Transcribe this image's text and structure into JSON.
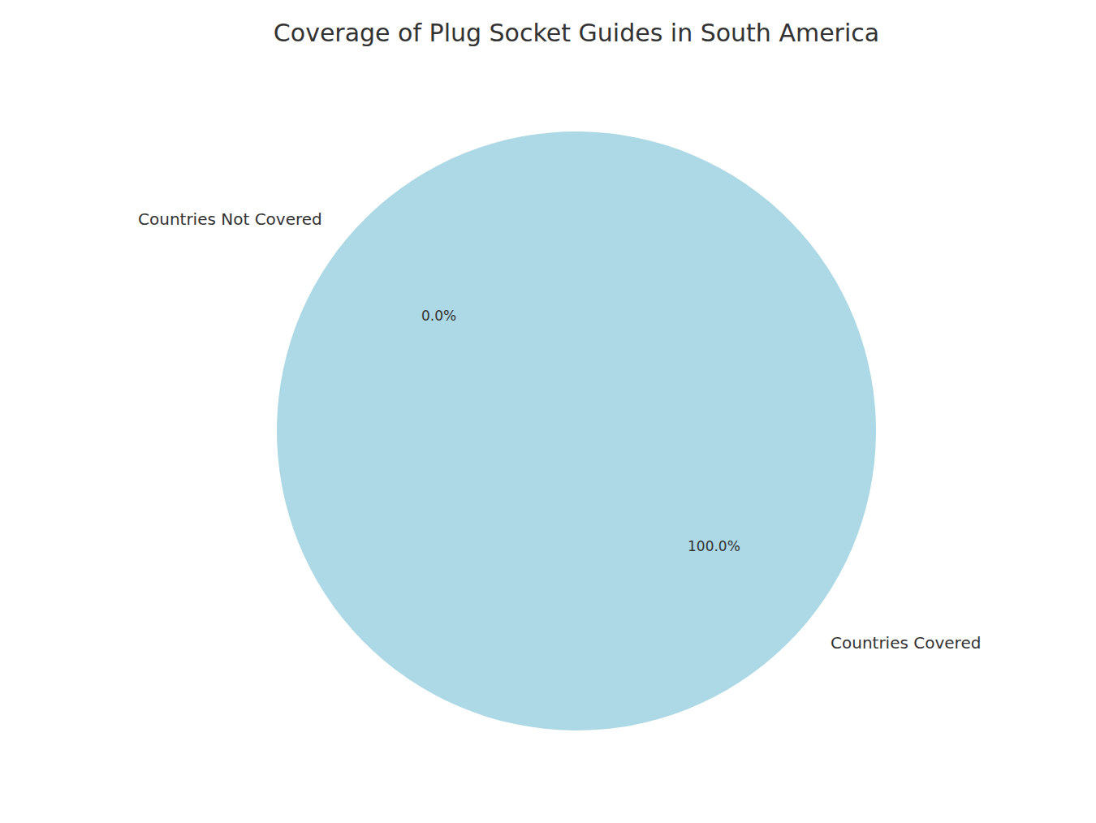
{
  "chart_data": {
    "type": "pie",
    "title": "Coverage of Plug Socket Guides in South America",
    "categories": [
      "Countries Covered",
      "Countries Not Covered"
    ],
    "values": [
      100,
      0
    ],
    "value_labels": [
      "100.0%",
      "0.0%"
    ],
    "data_labels": true,
    "color": "#add8e6"
  }
}
